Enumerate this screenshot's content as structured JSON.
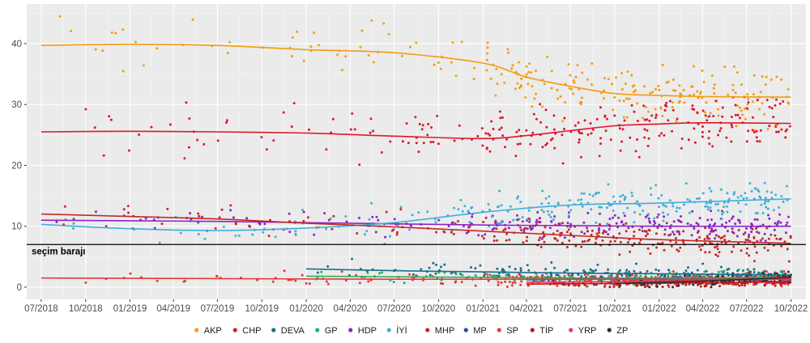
{
  "chart_data": {
    "type": "scatter",
    "title": "",
    "xlabel": "",
    "ylabel": "",
    "x_domain": [
      "2018-06-01",
      "2022-11-01"
    ],
    "ylim": [
      -2,
      46.5
    ],
    "y_ticks": [
      0,
      10,
      20,
      30,
      40
    ],
    "x_ticks": [
      {
        "date": "2018-07-01",
        "label": "07/2018"
      },
      {
        "date": "2018-10-01",
        "label": "10/2018"
      },
      {
        "date": "2019-01-01",
        "label": "01/2019"
      },
      {
        "date": "2019-04-01",
        "label": "04/2019"
      },
      {
        "date": "2019-07-01",
        "label": "07/2019"
      },
      {
        "date": "2019-10-01",
        "label": "10/2019"
      },
      {
        "date": "2020-01-01",
        "label": "01/2020"
      },
      {
        "date": "2020-04-01",
        "label": "04/2020"
      },
      {
        "date": "2020-07-01",
        "label": "07/2020"
      },
      {
        "date": "2020-10-01",
        "label": "10/2020"
      },
      {
        "date": "2021-01-01",
        "label": "01/2021"
      },
      {
        "date": "2021-04-01",
        "label": "04/2021"
      },
      {
        "date": "2021-07-01",
        "label": "07/2021"
      },
      {
        "date": "2021-10-01",
        "label": "10/2021"
      },
      {
        "date": "2022-01-01",
        "label": "01/2022"
      },
      {
        "date": "2022-04-01",
        "label": "04/2022"
      },
      {
        "date": "2022-07-01",
        "label": "07/2022"
      },
      {
        "date": "2022-10-01",
        "label": "10/2022"
      }
    ],
    "grid": true,
    "legend_position": "bottom",
    "threshold": {
      "value": 7,
      "label": "seçim barajı"
    },
    "series": [
      {
        "name": "AKP",
        "color": "#f39c12",
        "trend": [
          [
            "2018-07-01",
            39.7
          ],
          [
            "2019-01-01",
            39.9
          ],
          [
            "2019-07-01",
            39.7
          ],
          [
            "2020-01-01",
            39.0
          ],
          [
            "2020-07-01",
            38.5
          ],
          [
            "2021-01-01",
            36.8
          ],
          [
            "2021-04-01",
            34.5
          ],
          [
            "2021-07-01",
            33.0
          ],
          [
            "2021-10-01",
            31.8
          ],
          [
            "2022-01-01",
            31.5
          ],
          [
            "2022-04-01",
            31.3
          ],
          [
            "2022-10-01",
            31.2
          ]
        ],
        "spread": 3.5
      },
      {
        "name": "CHP",
        "color": "#e0162b",
        "trend": [
          [
            "2018-07-01",
            25.5
          ],
          [
            "2019-01-01",
            25.6
          ],
          [
            "2019-07-01",
            25.5
          ],
          [
            "2020-01-01",
            25.3
          ],
          [
            "2020-07-01",
            24.8
          ],
          [
            "2021-01-01",
            24.4
          ],
          [
            "2021-04-01",
            24.9
          ],
          [
            "2021-07-01",
            25.7
          ],
          [
            "2021-10-01",
            26.5
          ],
          [
            "2022-01-01",
            26.8
          ],
          [
            "2022-04-01",
            27.0
          ],
          [
            "2022-10-01",
            26.9
          ]
        ],
        "spread": 3.0
      },
      {
        "name": "DEVA",
        "color": "#1b6e8a",
        "trend": [
          [
            "2020-01-01",
            3.0
          ],
          [
            "2020-07-01",
            2.7
          ],
          [
            "2021-01-01",
            2.5
          ],
          [
            "2021-07-01",
            2.3
          ],
          [
            "2022-01-01",
            2.2
          ],
          [
            "2022-10-01",
            2.0
          ]
        ],
        "spread": 1.0
      },
      {
        "name": "GP",
        "color": "#27ae60",
        "trend": [
          [
            "2020-01-01",
            1.8
          ],
          [
            "2020-07-01",
            1.7
          ],
          [
            "2021-01-01",
            1.6
          ],
          [
            "2021-07-01",
            1.5
          ],
          [
            "2022-01-01",
            1.5
          ],
          [
            "2022-10-01",
            1.6
          ]
        ],
        "spread": 0.8
      },
      {
        "name": "HDP",
        "color": "#8e24c9",
        "trend": [
          [
            "2018-07-01",
            11.0
          ],
          [
            "2019-01-01",
            10.9
          ],
          [
            "2019-07-01",
            10.8
          ],
          [
            "2020-01-01",
            10.6
          ],
          [
            "2020-07-01",
            10.4
          ],
          [
            "2021-01-01",
            10.2
          ],
          [
            "2021-07-01",
            10.1
          ],
          [
            "2022-01-01",
            10.0
          ],
          [
            "2022-10-01",
            10.0
          ]
        ],
        "spread": 1.6
      },
      {
        "name": "İYİ",
        "color": "#3fb0d9",
        "trend": [
          [
            "2018-07-01",
            10.3
          ],
          [
            "2019-01-01",
            9.6
          ],
          [
            "2019-07-01",
            9.3
          ],
          [
            "2020-01-01",
            9.7
          ],
          [
            "2020-07-01",
            10.6
          ],
          [
            "2021-01-01",
            12.3
          ],
          [
            "2021-07-01",
            13.5
          ],
          [
            "2022-01-01",
            13.8
          ],
          [
            "2022-10-01",
            14.5
          ]
        ],
        "spread": 2.0
      },
      {
        "name": "MHP",
        "color": "#c62828",
        "trend": [
          [
            "2018-07-01",
            12.0
          ],
          [
            "2019-01-01",
            11.6
          ],
          [
            "2019-07-01",
            11.2
          ],
          [
            "2020-01-01",
            10.5
          ],
          [
            "2020-07-01",
            9.9
          ],
          [
            "2021-01-01",
            9.2
          ],
          [
            "2021-07-01",
            8.5
          ],
          [
            "2022-01-01",
            7.8
          ],
          [
            "2022-10-01",
            7.2
          ]
        ],
        "spread": 1.8
      },
      {
        "name": "MP",
        "color": "#1f4ea0",
        "trend": [
          [
            "2021-04-01",
            1.2
          ],
          [
            "2021-07-01",
            1.3
          ],
          [
            "2022-01-01",
            1.3
          ],
          [
            "2022-10-01",
            1.3
          ]
        ],
        "spread": 0.6
      },
      {
        "name": "SP",
        "color": "#e53935",
        "trend": [
          [
            "2018-07-01",
            1.5
          ],
          [
            "2019-07-01",
            1.4
          ],
          [
            "2020-07-01",
            1.3
          ],
          [
            "2021-07-01",
            1.3
          ],
          [
            "2022-10-01",
            1.3
          ]
        ],
        "spread": 0.8
      },
      {
        "name": "TİP",
        "color": "#b71c1c",
        "trend": [
          [
            "2021-04-01",
            0.5
          ],
          [
            "2021-10-01",
            0.6
          ],
          [
            "2022-04-01",
            0.7
          ],
          [
            "2022-10-01",
            0.9
          ]
        ],
        "spread": 0.5
      },
      {
        "name": "YRP",
        "color": "#f0325a",
        "trend": [
          [
            "2021-04-01",
            0.8
          ],
          [
            "2021-10-01",
            0.9
          ],
          [
            "2022-04-01",
            1.1
          ],
          [
            "2022-10-01",
            1.4
          ]
        ],
        "spread": 0.6
      },
      {
        "name": "ZP",
        "color": "#2b2b2b",
        "trend": [
          [
            "2021-10-01",
            0.6
          ],
          [
            "2022-04-01",
            1.0
          ],
          [
            "2022-10-01",
            1.6
          ]
        ],
        "spread": 0.7
      }
    ]
  }
}
